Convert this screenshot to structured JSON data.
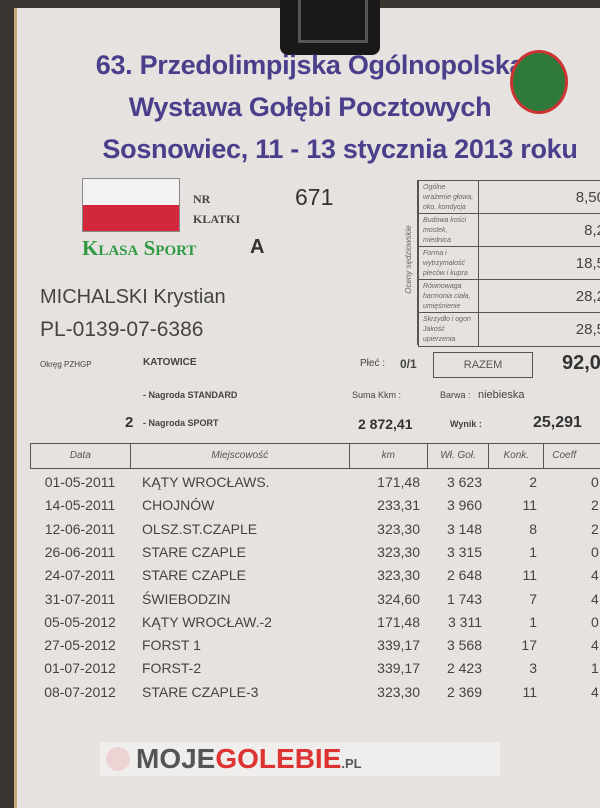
{
  "header": {
    "line1": "63. Przedolimpijska Ogólnopolska",
    "line2": "Wystawa Gołębi Pocztowych",
    "line3": "Sosnowiec, 11 - 13 stycznia 2013 roku"
  },
  "cage": {
    "label1": "NR",
    "label2": "KLATKI",
    "value": "671"
  },
  "klasa": {
    "label": "Klasa Sport",
    "value": "A"
  },
  "owner": {
    "name": "MICHALSKI Krystian",
    "ring": "PL-0139-07-6386"
  },
  "info": {
    "okreg_label": "Okręg PZHGP",
    "okreg": "KATOWICE",
    "plec_label": "Płeć :",
    "plec": "0/1",
    "nagroda_standard": "- Nagroda STANDARD",
    "suma_label": "Suma Kkm :",
    "barwa_label": "Barwa :",
    "barwa": "niebieska",
    "nagroda_sport_num": "2",
    "nagroda_sport": "- Nagroda SPORT",
    "suma": "2 872,41",
    "wynik_label": "Wynik :",
    "wynik": "25,291"
  },
  "judging": {
    "title": "Oceny sędziowskie",
    "rows": [
      {
        "label": "Ogólne wrażenie głowa, oko, kondycja",
        "value": "8,50"
      },
      {
        "label": "Budowa kości mostek, miednica",
        "value": "8,2"
      },
      {
        "label": "Forma i wytrzymałość pleców i kupra",
        "value": "18,5"
      },
      {
        "label": "Równowaga harmonia ciała, umięśnienie",
        "value": "28,2"
      },
      {
        "label": "Skrzydło i ogon Jakość upierzenia",
        "value": "28,5"
      }
    ],
    "total_label": "RAZEM",
    "total": "92,0"
  },
  "table": {
    "headers": [
      "Data",
      "Miejscowość",
      "km",
      "Wł. Goł.",
      "Konk.",
      "Coeff"
    ],
    "rows": [
      [
        "01-05-2011",
        "KĄTY WROCŁAWS.",
        "171,48",
        "3 623",
        "2",
        "0,"
      ],
      [
        "14-05-2011",
        "CHOJNÓW",
        "233,31",
        "3 960",
        "11",
        "2,"
      ],
      [
        "12-06-2011",
        "OLSZ.ST.CZAPLE",
        "323,30",
        "3 148",
        "8",
        "2,"
      ],
      [
        "26-06-2011",
        "STARE CZAPLE",
        "323,30",
        "3 315",
        "1",
        "0,"
      ],
      [
        "24-07-2011",
        "STARE CZAPLE",
        "323,30",
        "2 648",
        "11",
        "4,"
      ],
      [
        "31-07-2011",
        "ŚWIEBODZIN",
        "324,60",
        "1 743",
        "7",
        "4,"
      ],
      [
        "05-05-2012",
        "KĄTY WROCŁAW.-2",
        "171,48",
        "3 311",
        "1",
        "0,"
      ],
      [
        "27-05-2012",
        "FORST 1",
        "339,17",
        "3 568",
        "17",
        "4,"
      ],
      [
        "01-07-2012",
        "FORST-2",
        "339,17",
        "2 423",
        "3",
        "1,"
      ],
      [
        "08-07-2012",
        "STARE CZAPLE-3",
        "323,30",
        "2 369",
        "11",
        "4,"
      ]
    ]
  },
  "watermark": {
    "text1": "MOJE",
    "text2": "GOLEBIE",
    "text3": ".PL"
  },
  "colors": {
    "title": "#4b3f8c",
    "klasa": "#2f9a44",
    "flag_red": "#d3283c"
  }
}
